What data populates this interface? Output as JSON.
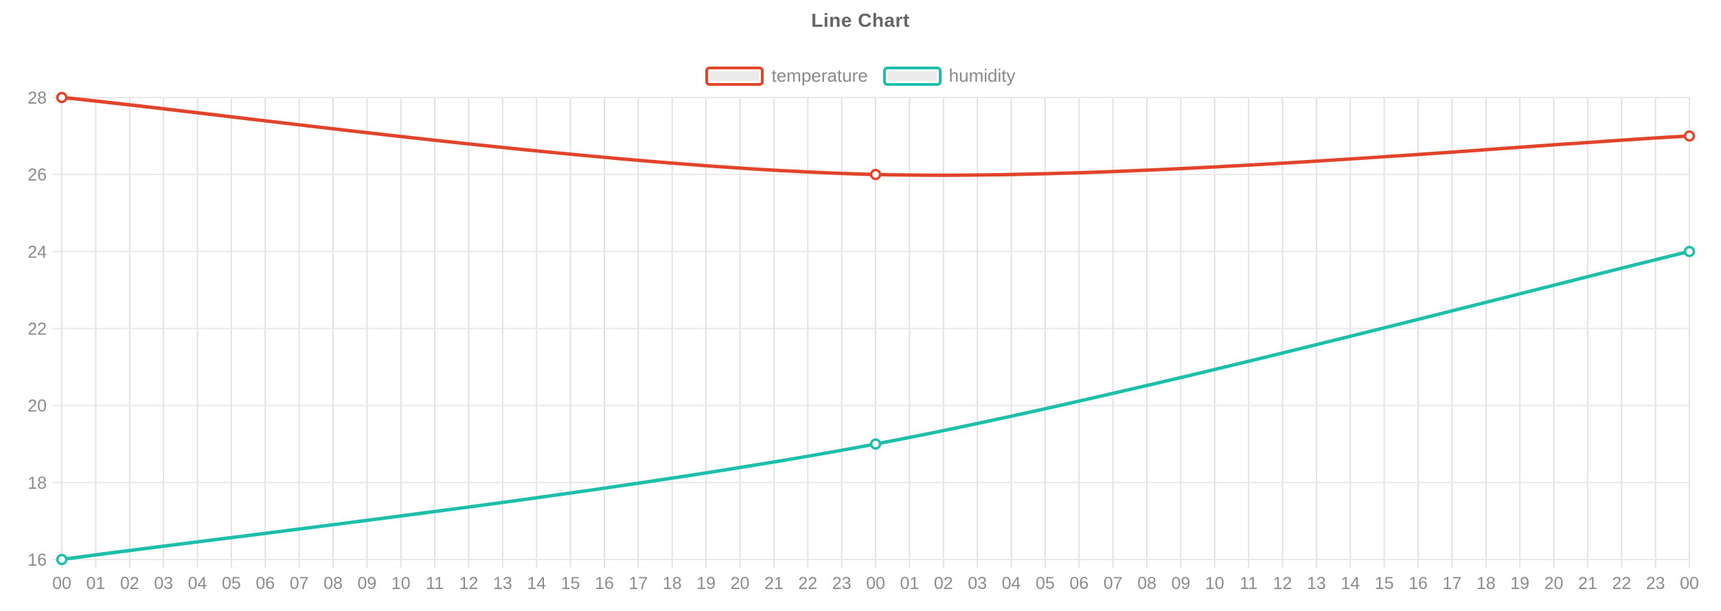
{
  "title": "Line Chart",
  "legend": {
    "items": [
      {
        "label": "temperature",
        "color": "#e2432b"
      },
      {
        "label": "humidity",
        "color": "#1dbfab"
      }
    ]
  },
  "colors": {
    "grid_vertical": "#e2e2e2",
    "grid_horizontal": "#e9e9e9",
    "axis_label": "#8c8c8c",
    "title": "#666666",
    "background": "#ffffff"
  },
  "chart_data": {
    "type": "line",
    "title": "Line Chart",
    "xlabel": "",
    "ylabel": "",
    "x_labels": [
      "00",
      "01",
      "02",
      "03",
      "04",
      "05",
      "06",
      "07",
      "08",
      "09",
      "10",
      "11",
      "12",
      "13",
      "14",
      "15",
      "16",
      "17",
      "18",
      "19",
      "20",
      "21",
      "22",
      "23",
      "00",
      "01",
      "02",
      "03",
      "04",
      "05",
      "06",
      "07",
      "08",
      "09",
      "10",
      "11",
      "12",
      "13",
      "14",
      "15",
      "16",
      "17",
      "18",
      "19",
      "20",
      "21",
      "22",
      "23",
      "00"
    ],
    "y_ticks": [
      16,
      18,
      20,
      22,
      24,
      26,
      28
    ],
    "ylim": [
      16,
      28
    ],
    "grid": true,
    "legend_position": "top-center",
    "smooth": true,
    "series": [
      {
        "name": "temperature",
        "color": "#e2432b",
        "points": [
          {
            "x_index": 0,
            "x_label": "00",
            "value": 28
          },
          {
            "x_index": 24,
            "x_label": "00",
            "value": 26
          },
          {
            "x_index": 48,
            "x_label": "00",
            "value": 27
          }
        ]
      },
      {
        "name": "humidity",
        "color": "#1dbfab",
        "points": [
          {
            "x_index": 0,
            "x_label": "00",
            "value": 16
          },
          {
            "x_index": 24,
            "x_label": "00",
            "value": 19
          },
          {
            "x_index": 48,
            "x_label": "00",
            "value": 24
          }
        ]
      }
    ]
  }
}
